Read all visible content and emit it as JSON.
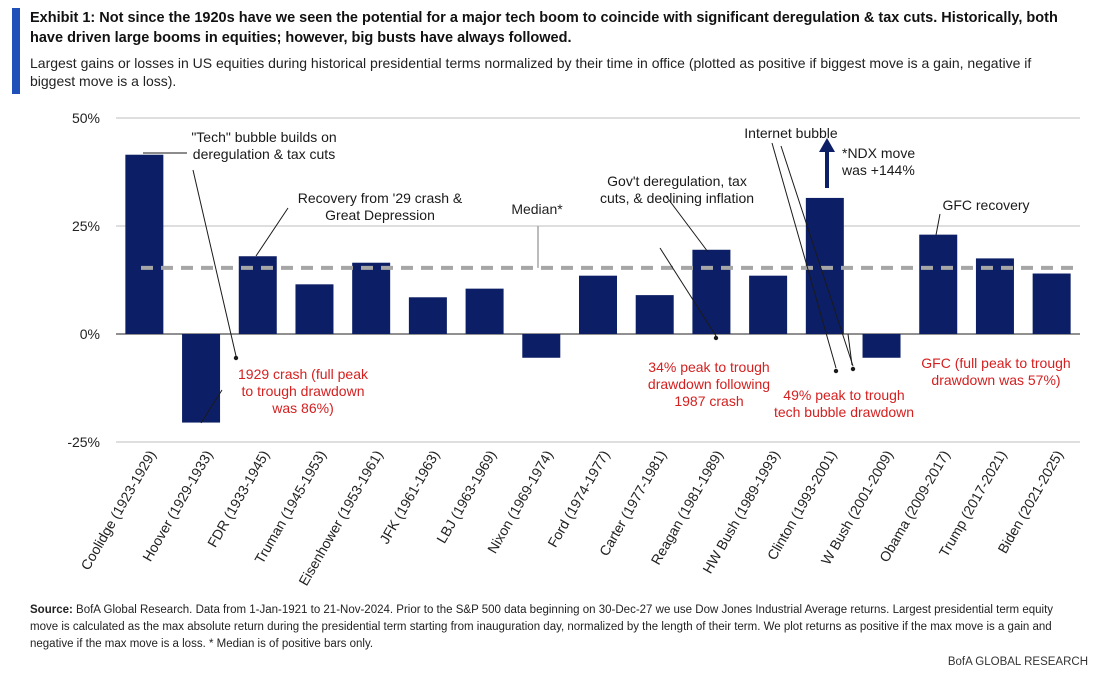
{
  "header": {
    "title": "Exhibit 1: Not since the 1920s have we seen the potential for a major tech boom to coincide with significant deregulation & tax cuts.  Historically, both have driven large booms in equities; however, big busts have always followed.",
    "subtitle": "Largest gains or losses in US equities during historical presidential terms normalized by their time in office (plotted as positive if biggest move is a gain, negative if biggest move is a loss)."
  },
  "footer": {
    "source_label": "Source:",
    "source_text": "BofA Global Research. Data from 1-Jan-1921 to 21-Nov-2024. Prior to the S&P 500 data beginning on 30-Dec-27 we use Dow Jones Industrial Average returns.  Largest presidential term equity move is calculated as the max absolute return during the presidential term starting from inauguration day, normalized by the length of their term. We plot returns as positive if the max move is a gain and negative if the max move is a loss. * Median is of positive bars only.",
    "brand": "BofA GLOBAL RESEARCH"
  },
  "chart_data": {
    "type": "bar",
    "categories": [
      "Coolidge (1923-1929)",
      "Hoover (1929-1933)",
      "FDR (1933-1945)",
      "Truman (1945-1953)",
      "Eisenhower (1953-1961)",
      "JFK (1961-1963)",
      "LBJ (1963-1969)",
      "Nixon (1969-1974)",
      "Ford (1974-1977)",
      "Carter (1977-1981)",
      "Reagan (1981-1989)",
      "HW Bush (1989-1993)",
      "Clinton (1993-2001)",
      "W Bush (2001-2009)",
      "Obama (2009-2017)",
      "Trump (2017-2021)",
      "Biden (2021-2025)"
    ],
    "values": [
      41.5,
      -20.5,
      18,
      11.5,
      16.5,
      8.5,
      10.5,
      -5.5,
      13.5,
      9,
      19.5,
      13.5,
      31.5,
      -5.5,
      23,
      17.5,
      14
    ],
    "median": 15.3,
    "median_label": "Median*",
    "ylim": [
      -25,
      50
    ],
    "yticks": [
      -25,
      0,
      25,
      50
    ],
    "ytick_labels": [
      "-25%",
      "0%",
      "25%",
      "50%"
    ],
    "grid": true,
    "bar_color": "#0c1f66",
    "median_color": "#a6a6a6",
    "black_annotation_color": "#1a1a1a",
    "red_annotation_color": "#d42020",
    "arrow_color": "#0c1f66",
    "annotations": [
      {
        "lines": [
          "\"Tech\" bubble builds on",
          "deregulation & tax cuts"
        ],
        "color": "black"
      },
      {
        "lines": [
          "Recovery from '29 crash &",
          "Great Depression"
        ],
        "color": "black"
      },
      {
        "lines": [
          "Gov't deregulation, tax",
          "cuts, & declining inflation"
        ],
        "color": "black"
      },
      {
        "lines": [
          "Internet bubble"
        ],
        "color": "black"
      },
      {
        "lines": [
          "*NDX move",
          "was +144%"
        ],
        "color": "black"
      },
      {
        "lines": [
          "GFC recovery"
        ],
        "color": "black"
      },
      {
        "lines": [
          "1929 crash (full peak",
          "to trough drawdown",
          "was 86%)"
        ],
        "color": "red"
      },
      {
        "lines": [
          "34% peak to trough",
          "drawdown following",
          "1987 crash"
        ],
        "color": "red"
      },
      {
        "lines": [
          "49% peak to trough",
          "tech bubble drawdown"
        ],
        "color": "red"
      },
      {
        "lines": [
          "GFC (full peak to trough",
          "drawdown was 57%)"
        ],
        "color": "red"
      }
    ]
  }
}
